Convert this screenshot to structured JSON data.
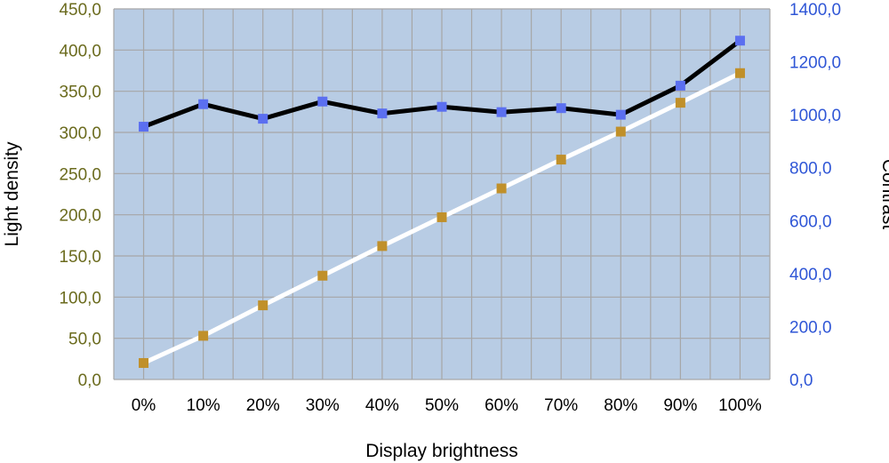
{
  "chart_data": {
    "type": "line",
    "xlabel": "Display brightness",
    "ylabel": "Light density",
    "y2label": "Contrast",
    "categories": [
      "0%",
      "10%",
      "20%",
      "30%",
      "40%",
      "50%",
      "60%",
      "70%",
      "80%",
      "90%",
      "100%"
    ],
    "ylim": [
      0,
      450
    ],
    "y2lim": [
      0,
      1400
    ],
    "y_ticks": [
      "0,0",
      "50,0",
      "100,0",
      "150,0",
      "200,0",
      "250,0",
      "300,0",
      "350,0",
      "400,0",
      "450,0"
    ],
    "y2_ticks": [
      "0,0",
      "200,0",
      "400,0",
      "600,0",
      "800,0",
      "1000,0",
      "1200,0",
      "1400,0"
    ],
    "grid": true,
    "colors": {
      "plot_bg": "#b8cce4",
      "grid": "#a6a6a6",
      "left_ticks": "#6b6b1e",
      "right_ticks": "#2f56d6",
      "light_density_line": "#ffffff",
      "light_density_marker": "#c0902a",
      "contrast_line": "#000000",
      "contrast_marker": "#5b6ff0"
    },
    "series": [
      {
        "axis": "left",
        "values": [
          20,
          53,
          90,
          126,
          162,
          197,
          232,
          267,
          301,
          336,
          372
        ]
      },
      {
        "axis": "right",
        "values": [
          955,
          1040,
          985,
          1050,
          1005,
          1030,
          1010,
          1025,
          1000,
          1110,
          1280
        ]
      }
    ]
  }
}
